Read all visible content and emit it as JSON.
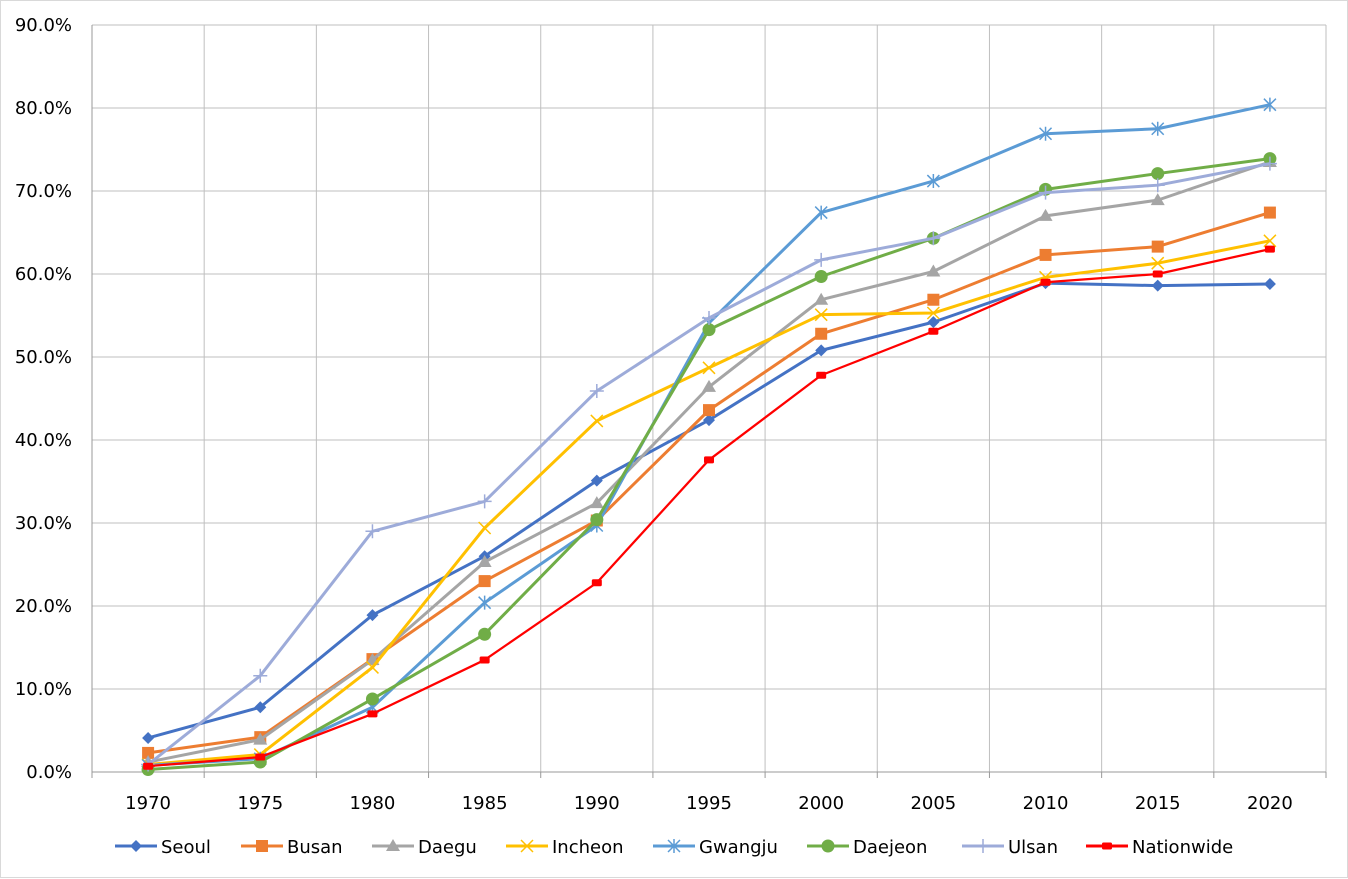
{
  "chart_data": {
    "type": "line",
    "title": "",
    "xlabel": "",
    "ylabel": "",
    "x": [
      "1970",
      "1975",
      "1980",
      "1985",
      "1990",
      "1995",
      "2000",
      "2005",
      "2010",
      "2015",
      "2020"
    ],
    "y_tick_labels": [
      "0.0%",
      "10.0%",
      "20.0%",
      "30.0%",
      "40.0%",
      "50.0%",
      "60.0%",
      "70.0%",
      "80.0%",
      "90.0%"
    ],
    "ylim": [
      0,
      90
    ],
    "y_unit": "%",
    "grid": true,
    "legend_position": "bottom",
    "series": [
      {
        "name": "Seoul",
        "color": "#4472c4",
        "marker": "diamond",
        "values": [
          4.1,
          7.8,
          18.9,
          26.0,
          35.1,
          42.4,
          50.8,
          54.2,
          58.9,
          58.6,
          58.8
        ]
      },
      {
        "name": "Busan",
        "color": "#ed7d31",
        "marker": "square",
        "values": [
          2.3,
          4.2,
          13.6,
          23.0,
          30.3,
          43.6,
          52.8,
          56.9,
          62.3,
          63.3,
          67.4
        ]
      },
      {
        "name": "Daegu",
        "color": "#a5a5a5",
        "marker": "triangle",
        "values": [
          1.2,
          3.9,
          13.5,
          25.3,
          32.4,
          46.4,
          56.9,
          60.3,
          67.0,
          68.9,
          73.5
        ]
      },
      {
        "name": "Incheon",
        "color": "#ffc000",
        "marker": "x",
        "values": [
          0.9,
          2.1,
          12.6,
          29.4,
          42.3,
          48.7,
          55.1,
          55.3,
          59.6,
          61.3,
          64.0
        ]
      },
      {
        "name": "Gwangju",
        "color": "#5b9bd5",
        "marker": "asterisk",
        "values": [
          0.8,
          1.6,
          7.8,
          20.4,
          29.7,
          54.1,
          67.4,
          71.2,
          76.9,
          77.5,
          80.4
        ]
      },
      {
        "name": "Daejeon",
        "color": "#70ad47",
        "marker": "circle",
        "values": [
          0.3,
          1.2,
          8.8,
          16.6,
          30.4,
          53.3,
          59.7,
          64.3,
          70.2,
          72.1,
          73.9
        ]
      },
      {
        "name": "Ulsan",
        "color": "#9dabd9",
        "marker": "plus",
        "values": [
          0.9,
          11.6,
          29.0,
          32.6,
          45.9,
          54.7,
          61.7,
          64.3,
          69.8,
          70.7,
          73.3
        ]
      },
      {
        "name": "Nationwide",
        "color": "#ff0000",
        "marker": "dash",
        "values": [
          0.7,
          1.8,
          7.0,
          13.5,
          22.8,
          37.6,
          47.8,
          53.1,
          59.0,
          60.0,
          63.0
        ]
      }
    ]
  }
}
